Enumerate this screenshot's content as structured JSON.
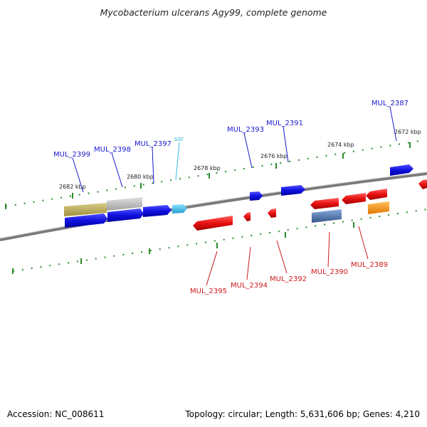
{
  "title": "Mycobacterium ulcerans Agy99, complete genome",
  "footer": {
    "accession": "Accession: NC_008611",
    "topology": "Topology: circular; Length: 5,631,606 bp; Genes: 4,210"
  },
  "ruler_labels": [
    "2682 kbp",
    "2680 kbp",
    "2678 kbp",
    "2676 kbp",
    "2674 kbp",
    "2672 kbp"
  ],
  "plus_genes": [
    "MUL_2399",
    "MUL_2398",
    "MUL_2397",
    "MUL_2393",
    "MUL_2391",
    "MUL_2387"
  ],
  "minus_genes": [
    "MUL_2395",
    "MUL_2394",
    "MUL_2392",
    "MUL_2390",
    "MUL_2389"
  ],
  "feature_labels": {
    "ssr": "ssr"
  },
  "colors": {
    "plus_strand": "#1010e0",
    "minus_strand": "#e81010",
    "backbone": "#808080",
    "tick": "#2a8a2a",
    "ssr": "#33bbdd",
    "orange_feature": "#ff9900",
    "steelblue_feature": "#4477aa",
    "olive_feature": "#b5a55a",
    "gray_feature": "#c0c0c0"
  }
}
